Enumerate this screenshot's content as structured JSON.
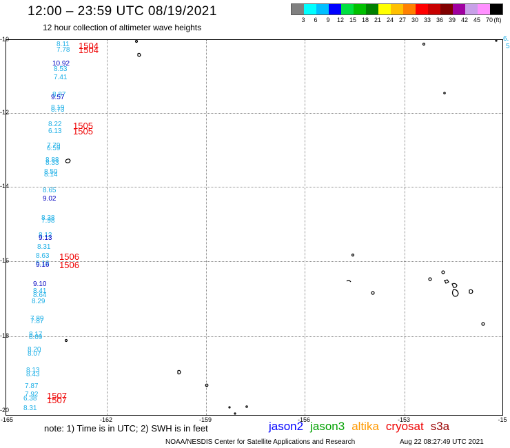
{
  "header": {
    "title": "12:00 – 23:59 UTC 08/19/2021",
    "subtitle": "12 hour collection of altimeter wave heights"
  },
  "legend": {
    "colors": [
      "#808080",
      "#00ffff",
      "#00bfff",
      "#0000ff",
      "#00e040",
      "#00c000",
      "#008000",
      "#ffff00",
      "#ffc000",
      "#ff8000",
      "#ff0000",
      "#c80000",
      "#800000",
      "#a000a0",
      "#c8a0e8",
      "#ff90ff",
      "#000000"
    ],
    "labels": [
      "3",
      "6",
      "9",
      "12",
      "15",
      "18",
      "21",
      "24",
      "27",
      "30",
      "33",
      "36",
      "39",
      "42",
      "45",
      "70",
      "(ft)"
    ]
  },
  "axes": {
    "y_labels": [
      "-10",
      "-12",
      "-14",
      "-16",
      "-18",
      "-20"
    ],
    "x_labels": [
      "-165",
      "-162",
      "-159",
      "-156",
      "-153",
      "-15"
    ]
  },
  "observations": [
    {
      "v": "8.11",
      "c": "cyan"
    },
    {
      "v": "7.78",
      "c": "cyan"
    },
    {
      "v": "10.92",
      "c": "blue"
    },
    {
      "v": "8.53",
      "c": "cyan"
    },
    {
      "v": "7.41",
      "c": "cyan"
    },
    {
      "v": "8.87",
      "c": "cyan"
    },
    {
      "v": "9.57",
      "c": "blue"
    },
    {
      "v": "8.19",
      "c": "cyan"
    },
    {
      "v": "8.73",
      "c": "cyan"
    },
    {
      "v": "8.22",
      "c": "cyan"
    },
    {
      "v": "6.13",
      "c": "cyan"
    },
    {
      "v": "7.79",
      "c": "cyan"
    },
    {
      "v": "6.59",
      "c": "cyan"
    },
    {
      "v": "8.88",
      "c": "cyan"
    },
    {
      "v": "8.33",
      "c": "cyan"
    },
    {
      "v": "8.50",
      "c": "cyan"
    },
    {
      "v": "8.14",
      "c": "cyan"
    },
    {
      "v": "8.65",
      "c": "cyan"
    },
    {
      "v": "9.02",
      "c": "blue"
    },
    {
      "v": "8.38",
      "c": "cyan"
    },
    {
      "v": "7.98",
      "c": "cyan"
    },
    {
      "v": "8.12",
      "c": "cyan"
    },
    {
      "v": "9.13",
      "c": "blue"
    },
    {
      "v": "8.31",
      "c": "cyan"
    },
    {
      "v": "8.63",
      "c": "cyan"
    },
    {
      "v": "8.16",
      "c": "cyan"
    },
    {
      "v": "9.16",
      "c": "blue"
    },
    {
      "v": "9.10",
      "c": "blue"
    },
    {
      "v": "8.41",
      "c": "cyan"
    },
    {
      "v": "8.64",
      "c": "cyan"
    },
    {
      "v": "8.29",
      "c": "cyan"
    },
    {
      "v": "7.89",
      "c": "cyan"
    },
    {
      "v": "7.87",
      "c": "cyan"
    },
    {
      "v": "8.17",
      "c": "cyan"
    },
    {
      "v": "8.09",
      "c": "cyan"
    },
    {
      "v": "8.20",
      "c": "cyan"
    },
    {
      "v": "8.07",
      "c": "cyan"
    },
    {
      "v": "8.13",
      "c": "cyan"
    },
    {
      "v": "8.43",
      "c": "cyan"
    },
    {
      "v": "7.87",
      "c": "cyan"
    },
    {
      "v": "7.92",
      "c": "cyan"
    },
    {
      "v": "6.38",
      "c": "cyan"
    },
    {
      "v": "8.31",
      "c": "cyan"
    }
  ],
  "right_edge_values": [
    "6.",
    "5"
  ],
  "cycles": [
    "1504",
    "1504",
    "1505",
    "1505",
    "1506",
    "1506",
    "1507",
    "1507"
  ],
  "footer": {
    "note": "note:  1) Time is in UTC;  2) SWH is in feet",
    "missions": [
      {
        "name": "jason2",
        "color": "#0000ff"
      },
      {
        "name": "jason3",
        "color": "#00a000"
      },
      {
        "name": "altika",
        "color": "#ff9900"
      },
      {
        "name": "cryosat",
        "color": "#ee0000"
      },
      {
        "name": "s3a",
        "color": "#990000"
      }
    ],
    "credit": "NOAA/NESDIS Center for Satellite Applications and Research",
    "timestamp": "Aug 22 08:27:49 UTC 2021"
  }
}
